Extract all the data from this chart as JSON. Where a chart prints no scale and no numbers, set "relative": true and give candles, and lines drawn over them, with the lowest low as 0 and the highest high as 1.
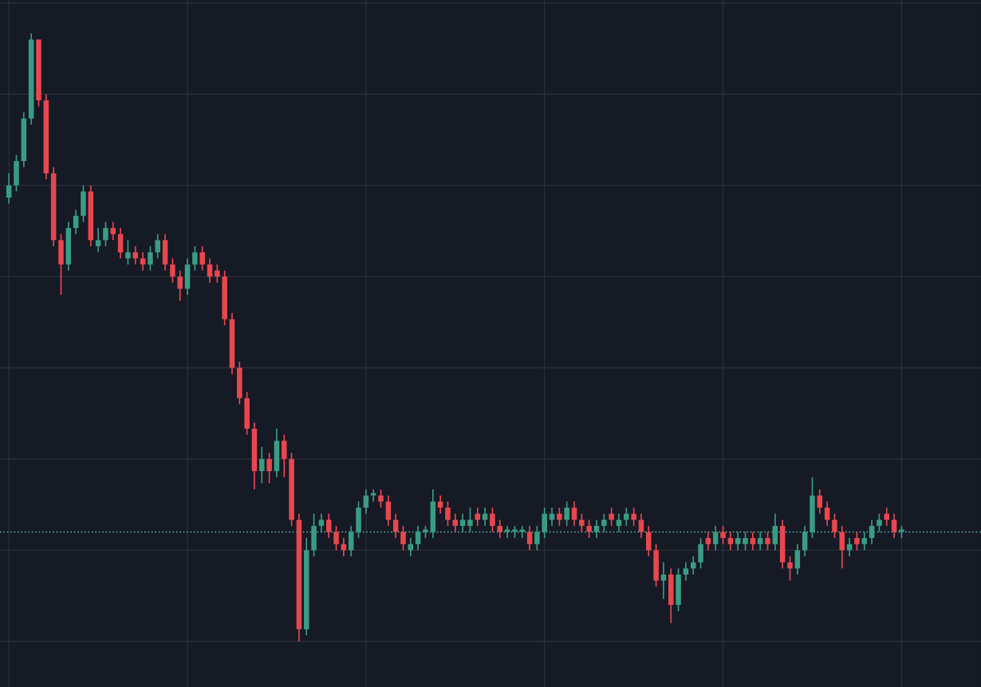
{
  "chart_data": {
    "type": "candlestick",
    "relative": true,
    "grid": true,
    "categories": [
      null,
      null,
      null,
      null,
      null,
      null,
      null,
      null,
      null,
      null,
      null,
      null,
      null,
      null,
      null,
      null,
      null,
      null,
      null,
      null,
      null,
      null,
      null,
      null,
      null,
      null,
      null,
      null,
      null,
      null,
      null,
      null,
      null,
      null,
      null,
      null,
      null,
      null,
      null,
      null,
      null,
      null,
      null,
      null,
      null,
      null,
      null,
      null,
      null,
      null,
      null,
      null,
      null,
      null,
      null,
      null,
      null,
      null,
      null,
      null,
      null,
      null,
      null,
      null,
      null,
      null,
      null,
      null,
      null,
      null,
      null,
      null,
      null,
      null,
      null,
      null,
      null,
      null,
      null,
      null,
      null,
      null,
      null,
      null,
      null,
      null,
      null,
      null,
      null,
      null,
      null,
      null,
      null,
      null,
      null,
      null,
      null,
      null,
      null,
      null,
      null,
      null,
      null,
      null,
      null,
      null,
      null,
      null,
      null,
      null,
      null,
      null,
      null,
      null,
      null,
      null,
      null,
      null,
      null,
      null,
      null
    ],
    "ohlc": [
      [
        0.73,
        0.77,
        0.72,
        0.75
      ],
      [
        0.75,
        0.8,
        0.74,
        0.79
      ],
      [
        0.79,
        0.87,
        0.78,
        0.86
      ],
      [
        0.86,
        1.0,
        0.85,
        0.99
      ],
      [
        0.99,
        0.99,
        0.88,
        0.89
      ],
      [
        0.89,
        0.9,
        0.76,
        0.77
      ],
      [
        0.77,
        0.78,
        0.65,
        0.66
      ],
      [
        0.66,
        0.67,
        0.57,
        0.62
      ],
      [
        0.62,
        0.69,
        0.61,
        0.68
      ],
      [
        0.68,
        0.71,
        0.67,
        0.7
      ],
      [
        0.7,
        0.75,
        0.69,
        0.74
      ],
      [
        0.74,
        0.75,
        0.65,
        0.66
      ],
      [
        0.65,
        0.68,
        0.64,
        0.66
      ],
      [
        0.66,
        0.69,
        0.65,
        0.68
      ],
      [
        0.68,
        0.69,
        0.66,
        0.67
      ],
      [
        0.67,
        0.68,
        0.63,
        0.64
      ],
      [
        0.63,
        0.66,
        0.62,
        0.64
      ],
      [
        0.64,
        0.65,
        0.62,
        0.63
      ],
      [
        0.63,
        0.64,
        0.61,
        0.62
      ],
      [
        0.62,
        0.65,
        0.61,
        0.64
      ],
      [
        0.64,
        0.67,
        0.63,
        0.66
      ],
      [
        0.66,
        0.67,
        0.61,
        0.62
      ],
      [
        0.62,
        0.63,
        0.59,
        0.6
      ],
      [
        0.6,
        0.61,
        0.56,
        0.58
      ],
      [
        0.58,
        0.63,
        0.57,
        0.62
      ],
      [
        0.62,
        0.65,
        0.61,
        0.64
      ],
      [
        0.64,
        0.65,
        0.61,
        0.62
      ],
      [
        0.62,
        0.63,
        0.59,
        0.6
      ],
      [
        0.61,
        0.62,
        0.59,
        0.6
      ],
      [
        0.6,
        0.61,
        0.52,
        0.53
      ],
      [
        0.53,
        0.54,
        0.44,
        0.45
      ],
      [
        0.45,
        0.46,
        0.39,
        0.4
      ],
      [
        0.4,
        0.41,
        0.34,
        0.35
      ],
      [
        0.35,
        0.36,
        0.25,
        0.28
      ],
      [
        0.28,
        0.32,
        0.26,
        0.3
      ],
      [
        0.3,
        0.31,
        0.26,
        0.28
      ],
      [
        0.28,
        0.35,
        0.27,
        0.33
      ],
      [
        0.33,
        0.34,
        0.27,
        0.3
      ],
      [
        0.3,
        0.31,
        0.19,
        0.2
      ],
      [
        0.2,
        0.21,
        0.0,
        0.02
      ],
      [
        0.02,
        0.17,
        0.01,
        0.15
      ],
      [
        0.15,
        0.21,
        0.14,
        0.19
      ],
      [
        0.19,
        0.21,
        0.18,
        0.2
      ],
      [
        0.2,
        0.21,
        0.17,
        0.18
      ],
      [
        0.18,
        0.19,
        0.15,
        0.16
      ],
      [
        0.16,
        0.17,
        0.14,
        0.15
      ],
      [
        0.15,
        0.19,
        0.14,
        0.18
      ],
      [
        0.18,
        0.23,
        0.17,
        0.22
      ],
      [
        0.22,
        0.25,
        0.21,
        0.24
      ],
      [
        0.24,
        0.25,
        0.23,
        0.24
      ],
      [
        0.24,
        0.25,
        0.22,
        0.23
      ],
      [
        0.23,
        0.24,
        0.19,
        0.2
      ],
      [
        0.2,
        0.21,
        0.17,
        0.18
      ],
      [
        0.18,
        0.19,
        0.15,
        0.16
      ],
      [
        0.15,
        0.17,
        0.14,
        0.16
      ],
      [
        0.16,
        0.19,
        0.15,
        0.18
      ],
      [
        0.18,
        0.19,
        0.17,
        0.18
      ],
      [
        0.18,
        0.25,
        0.17,
        0.23
      ],
      [
        0.23,
        0.24,
        0.21,
        0.22
      ],
      [
        0.22,
        0.23,
        0.19,
        0.2
      ],
      [
        0.2,
        0.21,
        0.18,
        0.19
      ],
      [
        0.19,
        0.21,
        0.18,
        0.2
      ],
      [
        0.19,
        0.22,
        0.18,
        0.2
      ],
      [
        0.21,
        0.22,
        0.19,
        0.2
      ],
      [
        0.2,
        0.22,
        0.19,
        0.21
      ],
      [
        0.21,
        0.22,
        0.18,
        0.19
      ],
      [
        0.19,
        0.2,
        0.17,
        0.18
      ],
      [
        0.18,
        0.19,
        0.17,
        0.18
      ],
      [
        0.18,
        0.19,
        0.17,
        0.18
      ],
      [
        0.18,
        0.19,
        0.17,
        0.18
      ],
      [
        0.18,
        0.19,
        0.15,
        0.16
      ],
      [
        0.16,
        0.19,
        0.15,
        0.18
      ],
      [
        0.18,
        0.22,
        0.17,
        0.21
      ],
      [
        0.2,
        0.22,
        0.19,
        0.21
      ],
      [
        0.21,
        0.22,
        0.19,
        0.2
      ],
      [
        0.2,
        0.23,
        0.19,
        0.22
      ],
      [
        0.22,
        0.23,
        0.19,
        0.2
      ],
      [
        0.2,
        0.21,
        0.18,
        0.19
      ],
      [
        0.19,
        0.2,
        0.17,
        0.18
      ],
      [
        0.18,
        0.2,
        0.17,
        0.19
      ],
      [
        0.19,
        0.21,
        0.18,
        0.2
      ],
      [
        0.21,
        0.22,
        0.19,
        0.2
      ],
      [
        0.19,
        0.21,
        0.18,
        0.2
      ],
      [
        0.2,
        0.22,
        0.19,
        0.21
      ],
      [
        0.21,
        0.22,
        0.19,
        0.2
      ],
      [
        0.2,
        0.21,
        0.17,
        0.18
      ],
      [
        0.18,
        0.19,
        0.14,
        0.15
      ],
      [
        0.15,
        0.16,
        0.09,
        0.1
      ],
      [
        0.1,
        0.13,
        0.07,
        0.11
      ],
      [
        0.11,
        0.12,
        0.03,
        0.06
      ],
      [
        0.06,
        0.12,
        0.05,
        0.11
      ],
      [
        0.11,
        0.13,
        0.1,
        0.12
      ],
      [
        0.12,
        0.14,
        0.11,
        0.13
      ],
      [
        0.13,
        0.17,
        0.12,
        0.16
      ],
      [
        0.17,
        0.18,
        0.15,
        0.16
      ],
      [
        0.16,
        0.19,
        0.15,
        0.18
      ],
      [
        0.18,
        0.19,
        0.16,
        0.17
      ],
      [
        0.17,
        0.18,
        0.15,
        0.16
      ],
      [
        0.16,
        0.18,
        0.15,
        0.17
      ],
      [
        0.16,
        0.18,
        0.15,
        0.17
      ],
      [
        0.17,
        0.18,
        0.15,
        0.16
      ],
      [
        0.16,
        0.18,
        0.15,
        0.17
      ],
      [
        0.17,
        0.18,
        0.15,
        0.16
      ],
      [
        0.16,
        0.21,
        0.15,
        0.19
      ],
      [
        0.19,
        0.2,
        0.12,
        0.13
      ],
      [
        0.13,
        0.14,
        0.1,
        0.12
      ],
      [
        0.12,
        0.16,
        0.11,
        0.15
      ],
      [
        0.15,
        0.19,
        0.14,
        0.18
      ],
      [
        0.18,
        0.27,
        0.17,
        0.24
      ],
      [
        0.24,
        0.25,
        0.21,
        0.22
      ],
      [
        0.22,
        0.23,
        0.19,
        0.2
      ],
      [
        0.2,
        0.21,
        0.17,
        0.18
      ],
      [
        0.18,
        0.19,
        0.12,
        0.15
      ],
      [
        0.15,
        0.17,
        0.14,
        0.16
      ],
      [
        0.17,
        0.18,
        0.15,
        0.16
      ],
      [
        0.16,
        0.18,
        0.15,
        0.17
      ],
      [
        0.17,
        0.2,
        0.16,
        0.19
      ],
      [
        0.19,
        0.21,
        0.18,
        0.2
      ],
      [
        0.21,
        0.22,
        0.19,
        0.2
      ],
      [
        0.2,
        0.21,
        0.17,
        0.18
      ],
      [
        0.18,
        0.19,
        0.17,
        0.18
      ]
    ],
    "ref_lines": [
      {
        "axis": "y",
        "value": 0.18,
        "color": "#5fb4a8",
        "line_style": "dotted"
      }
    ]
  }
}
